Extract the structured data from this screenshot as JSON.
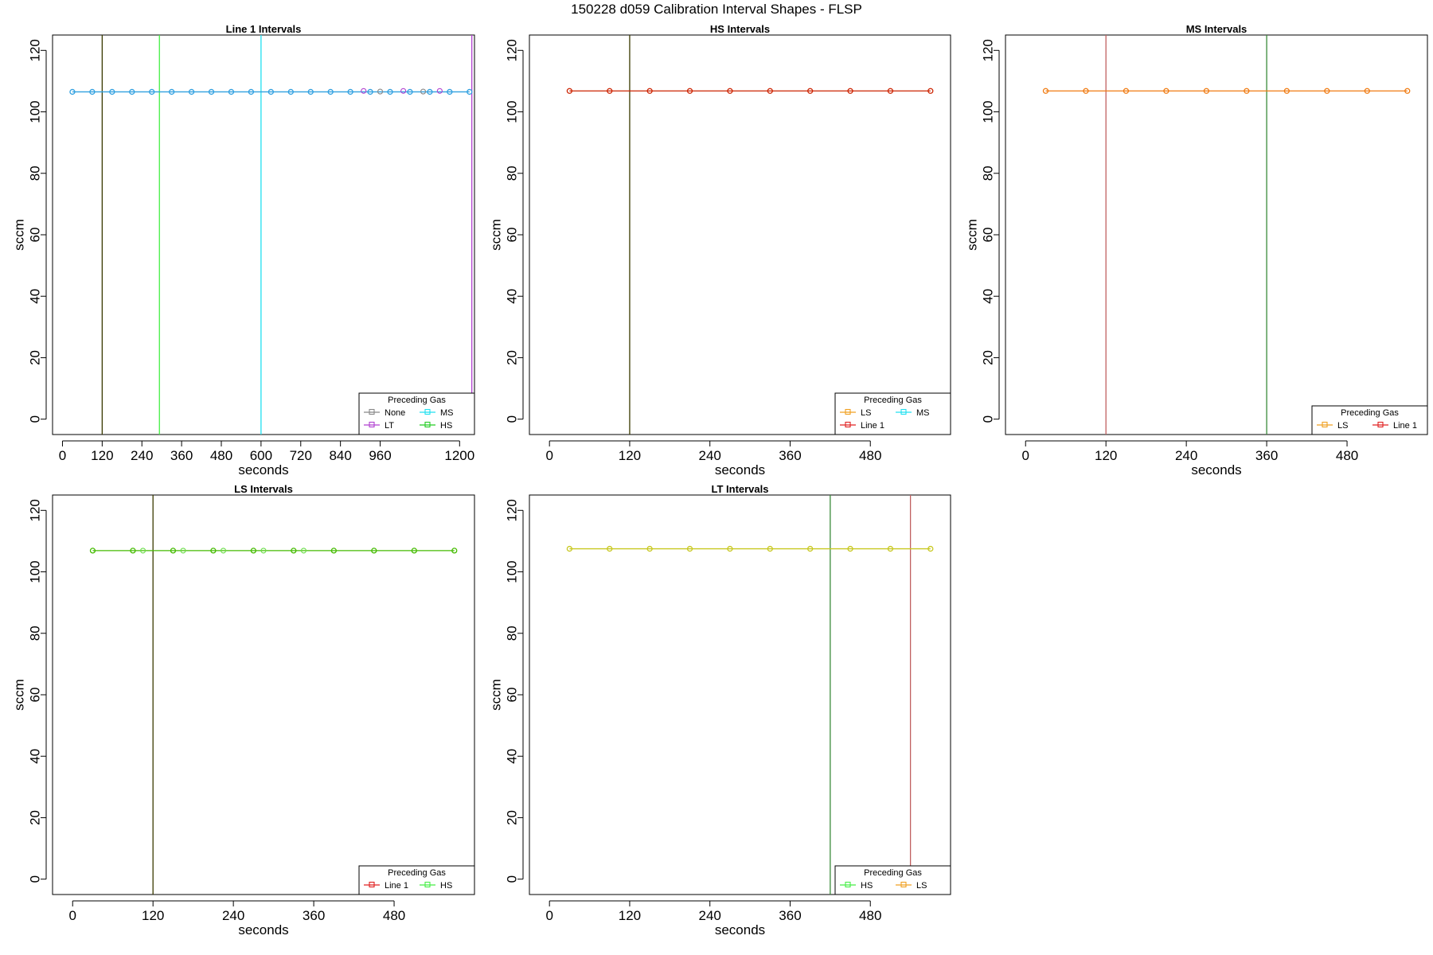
{
  "page": {
    "title": "150228   d059   Calibration Interval Shapes - FLSP"
  },
  "colors": {
    "None": "#888888",
    "LT": "#b040d0",
    "MS": "#20e0f0",
    "HS": "#22cc22",
    "LS": "#f0a020",
    "Line 1": "#e02020",
    "Line1_series": "#30a0e0",
    "HS_series": "#cc2200",
    "MS_series": "#f07a10",
    "LS_series": "#44bb00",
    "LT_series": "#c8c820"
  },
  "chart_data": [
    {
      "type": "line",
      "title": "Line 1 Intervals",
      "xlabel": "seconds",
      "ylabel": "sccm",
      "xlim": [
        -30,
        1245
      ],
      "ylim": [
        -5,
        125
      ],
      "xticks": [
        0,
        120,
        240,
        360,
        480,
        600,
        720,
        840,
        960,
        1200
      ],
      "yticks": [
        0,
        20,
        40,
        60,
        80,
        100,
        120
      ],
      "series_color": "#30a0e0",
      "x": [
        30,
        90,
        150,
        210,
        270,
        330,
        390,
        450,
        510,
        570,
        630,
        690,
        750,
        810,
        870,
        930,
        990,
        1050,
        1110,
        1170,
        1230
      ],
      "values": [
        106.5,
        106.5,
        106.5,
        106.5,
        106.5,
        106.5,
        106.5,
        106.5,
        106.5,
        106.5,
        106.5,
        106.5,
        106.5,
        106.5,
        106.5,
        106.5,
        106.5,
        106.5,
        106.5,
        106.5,
        106.5
      ],
      "extra_points": [
        {
          "x": 910,
          "y": 106.8,
          "color": "#b040d0"
        },
        {
          "x": 1030,
          "y": 106.8,
          "color": "#b040d0"
        },
        {
          "x": 1140,
          "y": 106.8,
          "color": "#b040d0"
        },
        {
          "x": 960,
          "y": 106.6,
          "color": "#888888"
        },
        {
          "x": 1090,
          "y": 106.6,
          "color": "#888888"
        }
      ],
      "vlines": [
        {
          "x": 120,
          "color": "#3a3a00"
        },
        {
          "x": 293,
          "color": "#44ee44"
        },
        {
          "x": 600,
          "color": "#20e0f0"
        },
        {
          "x": 1237,
          "color": "#b040d0"
        }
      ],
      "legend": {
        "title": "Preceding Gas",
        "placement": "bottom-right",
        "columns": 2,
        "entries": [
          {
            "label": "None",
            "color": "#888888"
          },
          {
            "label": "MS",
            "color": "#20e0f0"
          },
          {
            "label": "LT",
            "color": "#b040d0"
          },
          {
            "label": "HS",
            "color": "#22cc22"
          }
        ]
      }
    },
    {
      "type": "line",
      "title": "HS Intervals",
      "xlabel": "seconds",
      "ylabel": "sccm",
      "xlim": [
        -30,
        600
      ],
      "ylim": [
        -5,
        125
      ],
      "xticks": [
        0,
        120,
        240,
        360,
        480
      ],
      "yticks": [
        0,
        20,
        40,
        60,
        80,
        100,
        120
      ],
      "series_color": "#cc2200",
      "x": [
        30,
        90,
        150,
        210,
        270,
        330,
        390,
        450,
        510,
        570
      ],
      "values": [
        106.8,
        106.8,
        106.8,
        106.8,
        106.8,
        106.8,
        106.8,
        106.8,
        106.8,
        106.8
      ],
      "extra_points": [],
      "vlines": [
        {
          "x": 120,
          "color": "#3a3a00"
        }
      ],
      "legend": {
        "title": "Preceding Gas",
        "placement": "bottom-right",
        "columns": 2,
        "entries": [
          {
            "label": "LS",
            "color": "#f0a020"
          },
          {
            "label": "MS",
            "color": "#20e0f0"
          },
          {
            "label": "Line 1",
            "color": "#e02020"
          }
        ]
      }
    },
    {
      "type": "line",
      "title": "MS Intervals",
      "xlabel": "seconds",
      "ylabel": "sccm",
      "xlim": [
        -30,
        600
      ],
      "ylim": [
        -5,
        125
      ],
      "xticks": [
        0,
        120,
        240,
        360,
        480
      ],
      "yticks": [
        0,
        20,
        40,
        60,
        80,
        100,
        120
      ],
      "series_color": "#f07a10",
      "x": [
        30,
        90,
        150,
        210,
        270,
        330,
        390,
        450,
        510,
        570
      ],
      "values": [
        106.8,
        106.8,
        106.8,
        106.8,
        106.8,
        106.8,
        106.8,
        106.8,
        106.8,
        106.8
      ],
      "extra_points": [],
      "vlines": [
        {
          "x": 120,
          "color": "#c06060"
        },
        {
          "x": 360,
          "color": "#3a8a3a"
        }
      ],
      "legend": {
        "title": "Preceding Gas",
        "placement": "bottom-right",
        "columns": 2,
        "entries": [
          {
            "label": "LS",
            "color": "#f0a020"
          },
          {
            "label": "Line 1",
            "color": "#e02020"
          }
        ]
      }
    },
    {
      "type": "line",
      "title": "LS Intervals",
      "xlabel": "seconds",
      "ylabel": "sccm",
      "xlim": [
        -30,
        600
      ],
      "ylim": [
        -5,
        125
      ],
      "xticks": [
        0,
        120,
        240,
        360,
        480
      ],
      "yticks": [
        0,
        20,
        40,
        60,
        80,
        100,
        120
      ],
      "series_color": "#44bb00",
      "x": [
        30,
        90,
        150,
        210,
        270,
        330,
        390,
        450,
        510,
        570
      ],
      "values": [
        106.9,
        106.9,
        106.9,
        106.9,
        106.9,
        106.9,
        106.9,
        106.9,
        106.9,
        106.9
      ],
      "extra_points": [
        {
          "x": 105,
          "y": 106.9,
          "color": "#66dd44"
        },
        {
          "x": 165,
          "y": 106.9,
          "color": "#66dd44"
        },
        {
          "x": 225,
          "y": 106.9,
          "color": "#66dd44"
        },
        {
          "x": 285,
          "y": 106.9,
          "color": "#66dd44"
        },
        {
          "x": 345,
          "y": 106.9,
          "color": "#66dd44"
        }
      ],
      "vlines": [
        {
          "x": 120,
          "color": "#3a3a00"
        }
      ],
      "legend": {
        "title": "Preceding Gas",
        "placement": "bottom-right",
        "columns": 2,
        "entries": [
          {
            "label": "Line 1",
            "color": "#e02020"
          },
          {
            "label": "HS",
            "color": "#44ee44"
          }
        ]
      }
    },
    {
      "type": "line",
      "title": "LT Intervals",
      "xlabel": "seconds",
      "ylabel": "sccm",
      "xlim": [
        -30,
        600
      ],
      "ylim": [
        -5,
        125
      ],
      "xticks": [
        0,
        120,
        240,
        360,
        480
      ],
      "yticks": [
        0,
        20,
        40,
        60,
        80,
        100,
        120
      ],
      "series_color": "#c8c820",
      "x": [
        30,
        90,
        150,
        210,
        270,
        330,
        390,
        450,
        510,
        570
      ],
      "values": [
        107.5,
        107.5,
        107.5,
        107.5,
        107.5,
        107.5,
        107.5,
        107.5,
        107.5,
        107.5
      ],
      "extra_points": [],
      "vlines": [
        {
          "x": 420,
          "color": "#3a8a3a"
        },
        {
          "x": 540,
          "color": "#c06060"
        }
      ],
      "legend": {
        "title": "Preceding Gas",
        "placement": "bottom-right",
        "columns": 2,
        "entries": [
          {
            "label": "HS",
            "color": "#44ee44"
          },
          {
            "label": "LS",
            "color": "#f0a020"
          }
        ]
      }
    }
  ]
}
